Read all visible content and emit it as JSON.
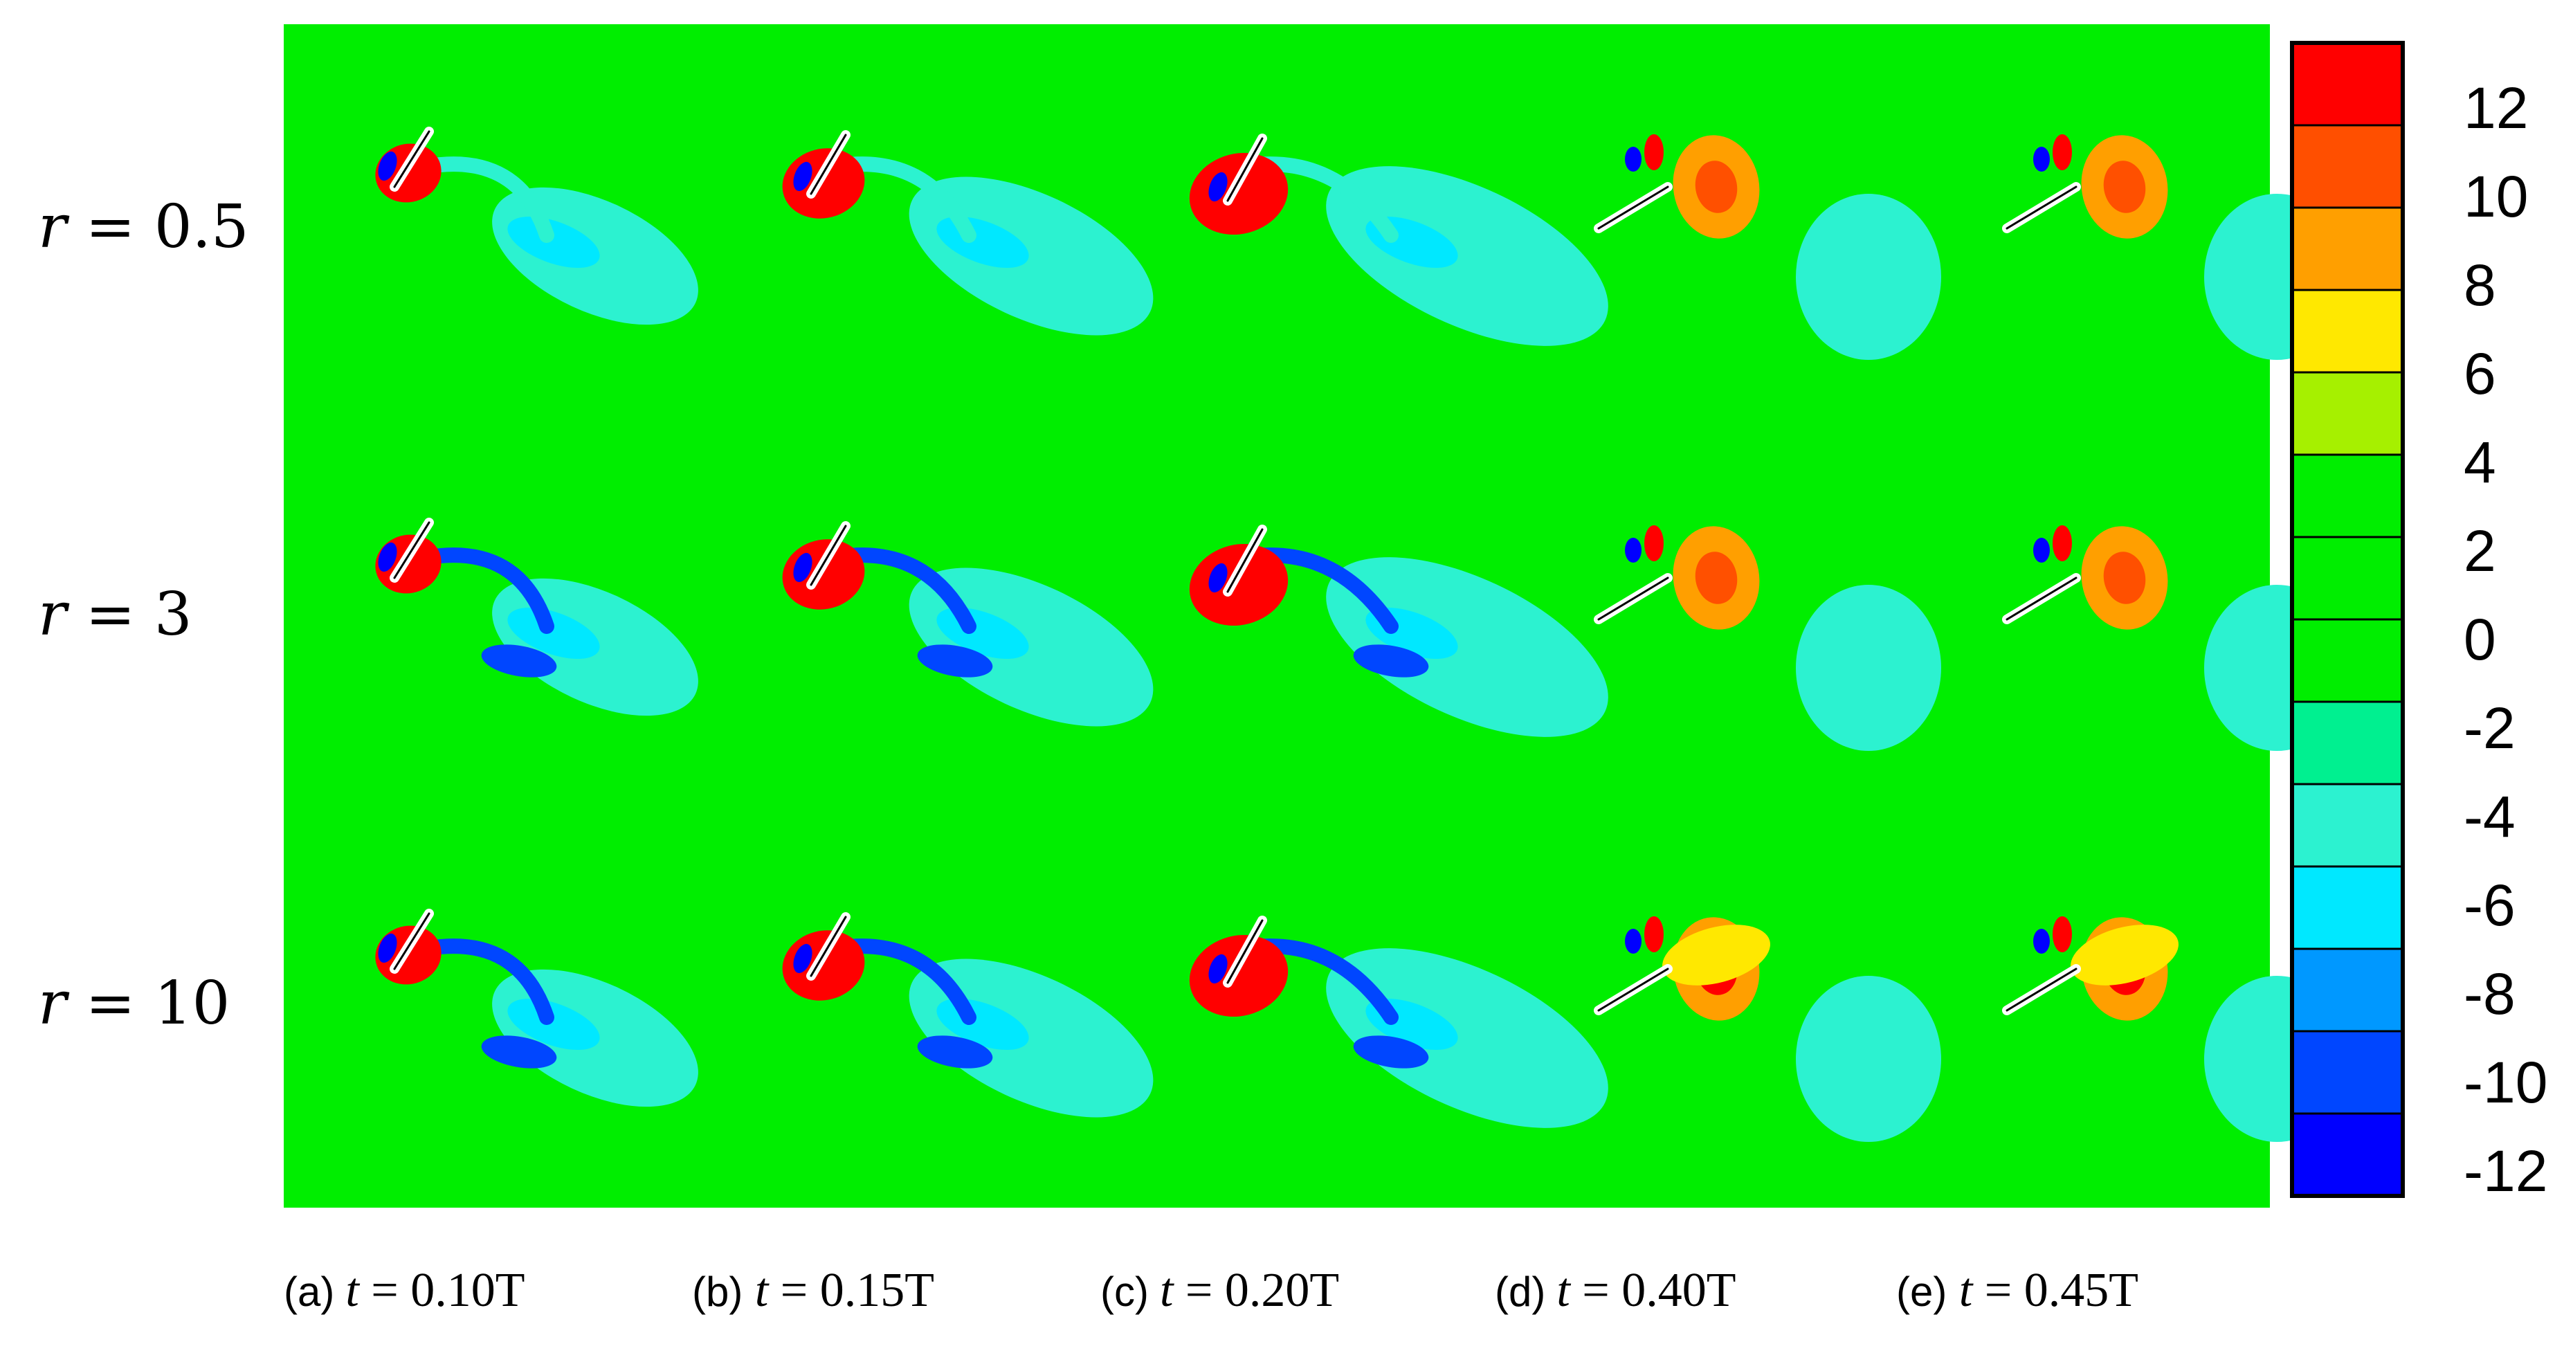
{
  "rows": [
    {
      "symbol": "r",
      "relation": " = 0.5"
    },
    {
      "symbol": "r",
      "relation": " = 3"
    },
    {
      "symbol": "r",
      "relation": " = 10"
    }
  ],
  "columns": [
    {
      "tag": "(a)",
      "symbol": "t",
      "relation": " = 0.10T"
    },
    {
      "tag": "(b)",
      "symbol": "t",
      "relation": " = 0.15T"
    },
    {
      "tag": "(c)",
      "symbol": "t",
      "relation": " = 0.20T"
    },
    {
      "tag": "(d)",
      "symbol": "t",
      "relation": " = 0.40T"
    },
    {
      "tag": "(e)",
      "symbol": "t",
      "relation": " = 0.45T"
    }
  ],
  "colorbar": {
    "ticks": [
      "12",
      "10",
      "8",
      "6",
      "4",
      "2",
      "0",
      "-2",
      "-4",
      "-6",
      "-8",
      "-10",
      "-12"
    ],
    "band_colors": [
      "#ff0000",
      "#ff4f00",
      "#ff9f00",
      "#ffe800",
      "#a6f000",
      "#00ee00",
      "#00ee00",
      "#00ee00",
      "#00f090",
      "#2cf2d0",
      "#00e8ff",
      "#0098ff",
      "#0046ff",
      "#0000ff"
    ]
  },
  "field_colors": {
    "background": "#00ee00",
    "pos_high": "#ff0000",
    "pos_mid": "#ff9f00",
    "pos_low": "#ffe800",
    "neg_weak": "#2cf2d0",
    "neg_mid": "#00e8ff",
    "neg_strong": "#0046ff",
    "neg_max": "#0000ff",
    "plate": "#ffffff"
  }
}
